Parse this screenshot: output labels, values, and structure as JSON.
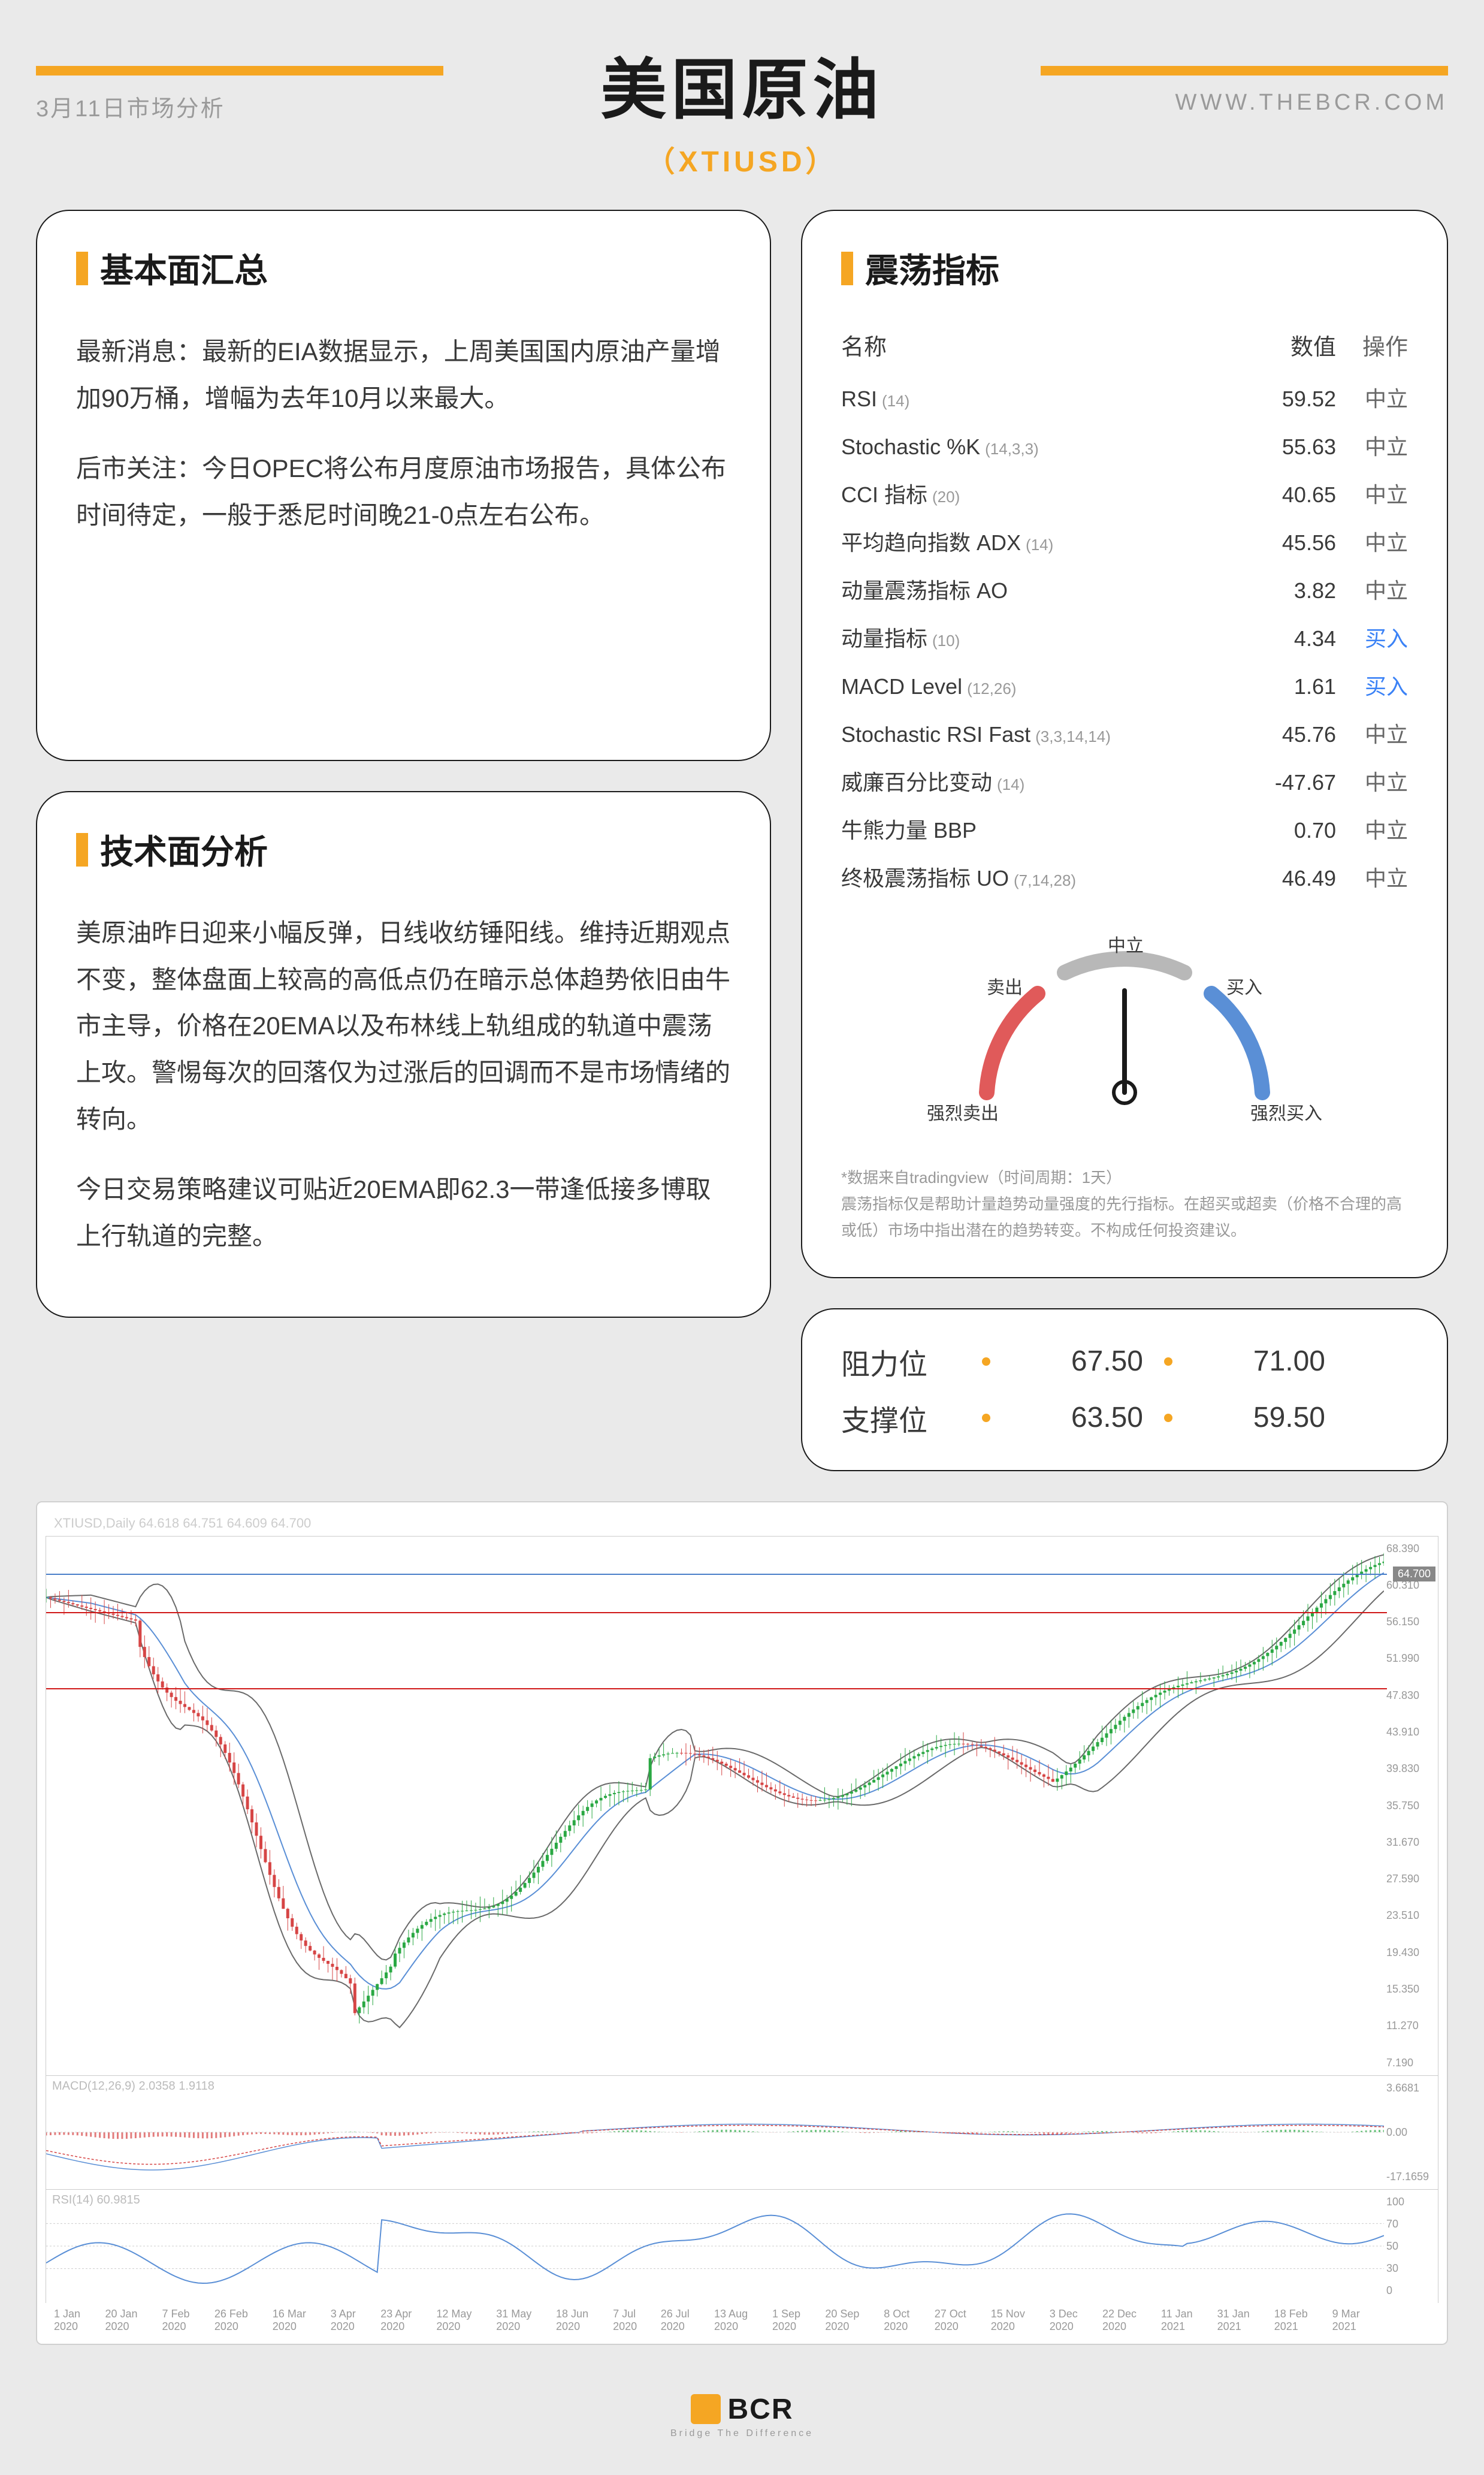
{
  "header": {
    "date": "3月11日市场分析",
    "url": "WWW.THEBCR.COM",
    "title": "美国原油",
    "ticker": "（XTIUSD）"
  },
  "fundamentals": {
    "title": "基本面汇总",
    "p1": "最新消息：最新的EIA数据显示，上周美国国内原油产量增加90万桶，增幅为去年10月以来最大。",
    "p2": "后市关注：今日OPEC将公布月度原油市场报告，具体公布时间待定，一般于悉尼时间晚21-0点左右公布。"
  },
  "technical": {
    "title": "技术面分析",
    "p1": "美原油昨日迎来小幅反弹，日线收纺锤阳线。维持近期观点不变，整体盘面上较高的高低点仍在暗示总体趋势依旧由牛市主导，价格在20EMA以及布林线上轨组成的轨道中震荡上攻。警惕每次的回落仅为过涨后的回调而不是市场情绪的转向。",
    "p2": "今日交易策略建议可贴近20EMA即62.3一带逢低接多博取上行轨道的完整。"
  },
  "oscillators": {
    "title": "震荡指标",
    "headers": {
      "name": "名称",
      "value": "数值",
      "action": "操作"
    },
    "rows": [
      {
        "name": "RSI",
        "param": "(14)",
        "value": "59.52",
        "action": "中立",
        "actionType": "neutral"
      },
      {
        "name": "Stochastic %K",
        "param": "(14,3,3)",
        "value": "55.63",
        "action": "中立",
        "actionType": "neutral"
      },
      {
        "name": "CCI 指标",
        "param": "(20)",
        "value": "40.65",
        "action": "中立",
        "actionType": "neutral"
      },
      {
        "name": "平均趋向指数 ADX",
        "param": "(14)",
        "value": "45.56",
        "action": "中立",
        "actionType": "neutral"
      },
      {
        "name": "动量震荡指标 AO",
        "param": "",
        "value": "3.82",
        "action": "中立",
        "actionType": "neutral"
      },
      {
        "name": "动量指标",
        "param": "(10)",
        "value": "4.34",
        "action": "买入",
        "actionType": "buy"
      },
      {
        "name": "MACD Level",
        "param": "(12,26)",
        "value": "1.61",
        "action": "买入",
        "actionType": "buy"
      },
      {
        "name": "Stochastic RSI Fast",
        "param": "(3,3,14,14)",
        "value": "45.76",
        "action": "中立",
        "actionType": "neutral"
      },
      {
        "name": "威廉百分比变动",
        "param": "(14)",
        "value": "-47.67",
        "action": "中立",
        "actionType": "neutral"
      },
      {
        "name": "牛熊力量 BBP",
        "param": "",
        "value": "0.70",
        "action": "中立",
        "actionType": "neutral"
      },
      {
        "name": "终极震荡指标 UO",
        "param": "(7,14,28)",
        "value": "46.49",
        "action": "中立",
        "actionType": "neutral"
      }
    ],
    "gauge": {
      "labels": {
        "strongSell": "强烈卖出",
        "sell": "卖出",
        "neutral": "中立",
        "buy": "买入",
        "strongBuy": "强烈买入"
      },
      "needleAngle": 0,
      "colors": {
        "sell": "#e05a5a",
        "neutral": "#b8b8b8",
        "buy": "#5a8fd6"
      }
    },
    "note": "*数据来自tradingview（时间周期：1天）\n震荡指标仅是帮助计量趋势动量强度的先行指标。在超买或超卖（价格不合理的高或低）市场中指出潜在的趋势转变。不构成任何投资建议。"
  },
  "levels": {
    "resistance": {
      "label": "阻力位",
      "v1": "67.50",
      "v2": "71.00"
    },
    "support": {
      "label": "支撑位",
      "v1": "63.50",
      "v2": "59.50"
    }
  },
  "chart": {
    "headerText": "XTIUSD,Daily  64.618 64.751 64.609 64.700",
    "yTicks": [
      "68.390",
      "60.310",
      "56.150",
      "51.990",
      "47.830",
      "43.910",
      "39.830",
      "35.750",
      "31.670",
      "27.590",
      "23.510",
      "19.430",
      "15.350",
      "11.270",
      "7.190"
    ],
    "priceTag": "64.700",
    "redLineTop": 60.31,
    "redLineBot": 51.5,
    "yMin": 7,
    "yMax": 69,
    "macd": {
      "label": "MACD(12,26,9) 2.0358 1.9118",
      "yTicks": [
        "3.6681",
        "0.00",
        "-17.1659"
      ]
    },
    "rsi": {
      "label": "RSI(14) 60.9815",
      "yTicks": [
        "100",
        "70",
        "50",
        "30",
        "0"
      ]
    },
    "xTicks": [
      "1 Jan 2020",
      "20 Jan 2020",
      "7 Feb 2020",
      "26 Feb 2020",
      "16 Mar 2020",
      "3 Apr 2020",
      "23 Apr 2020",
      "12 May 2020",
      "31 May 2020",
      "18 Jun 2020",
      "7 Jul 2020",
      "26 Jul 2020",
      "13 Aug 2020",
      "1 Sep 2020",
      "20 Sep 2020",
      "8 Oct 2020",
      "27 Oct 2020",
      "15 Nov 2020",
      "3 Dec 2020",
      "22 Dec 2020",
      "11 Jan 2021",
      "31 Jan 2021",
      "18 Feb 2021",
      "9 Mar 2021"
    ],
    "colors": {
      "candleUp": "#2aa843",
      "candleDown": "#d64545",
      "band": "#6a6a6a",
      "ma": "#5a8fd6",
      "macdLine": "#d64545",
      "macdSignal": "#5a8fd6",
      "rsiLine": "#5a8fd6",
      "grid": "#d8d8d8",
      "redLine": "#d01818",
      "blueLine": "#4a7fc9"
    }
  },
  "footer": {
    "brand": "BCR",
    "sub": "Bridge The Difference"
  }
}
